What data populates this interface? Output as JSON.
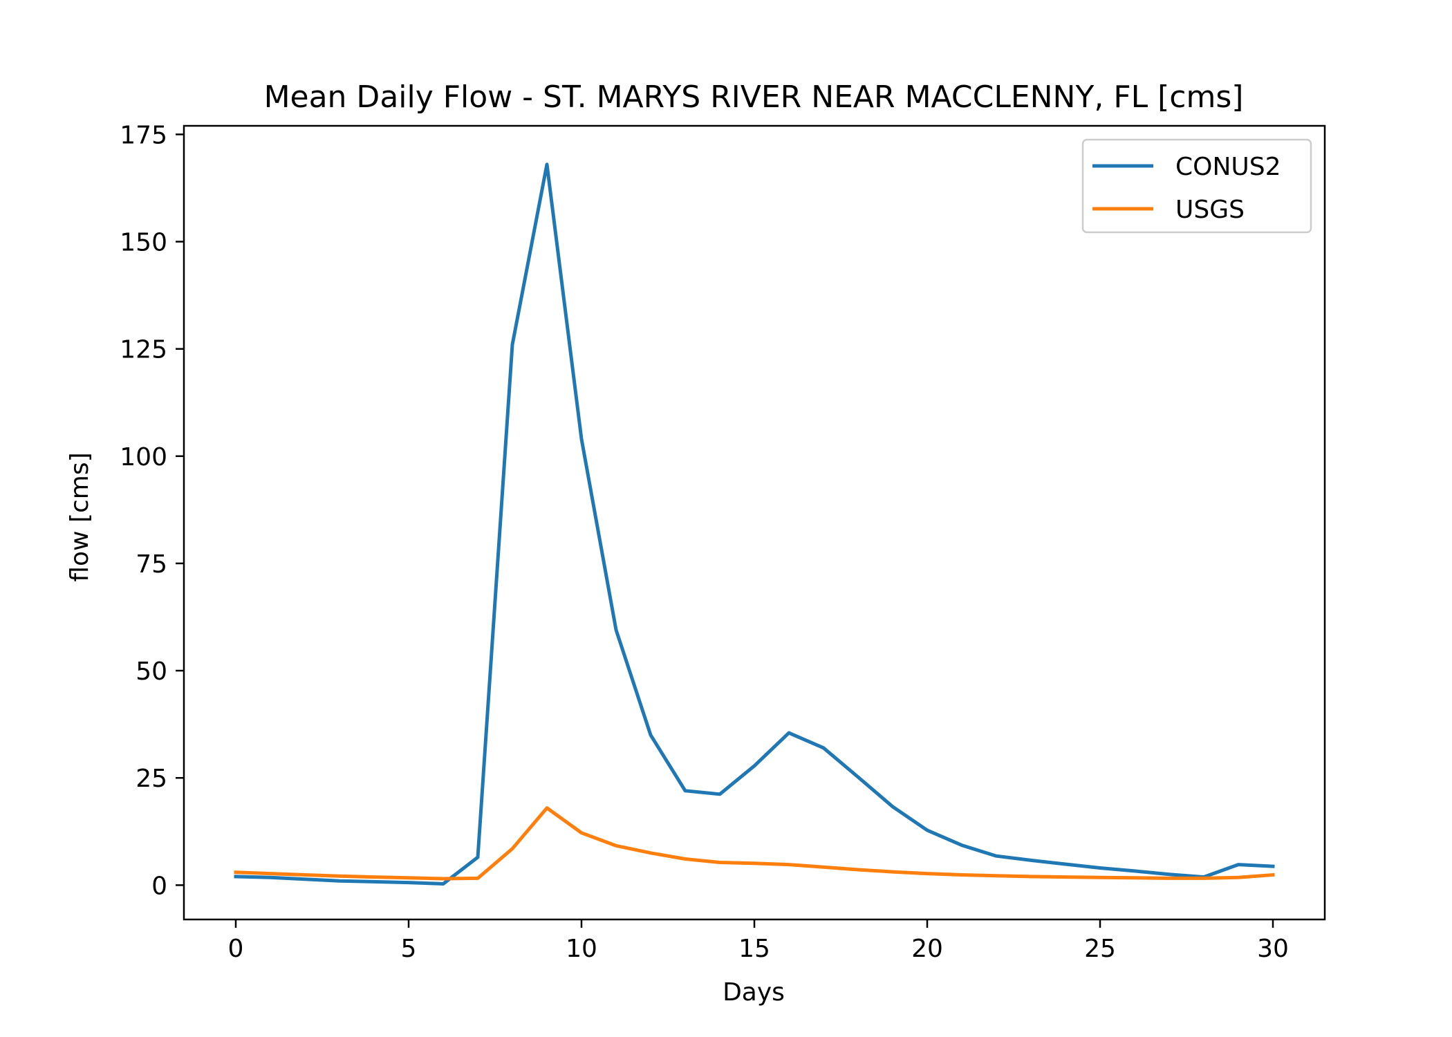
{
  "chart_data": {
    "type": "line",
    "title": "Mean Daily Flow - ST. MARYS RIVER NEAR MACCLENNY, FL [cms]",
    "xlabel": "Days",
    "ylabel": "flow [cms]",
    "xlim": [
      -1.5,
      31.5
    ],
    "ylim": [
      -8,
      177
    ],
    "xticks": [
      0,
      5,
      10,
      15,
      20,
      25,
      30
    ],
    "yticks": [
      0,
      25,
      50,
      75,
      100,
      125,
      150,
      175
    ],
    "grid": false,
    "legend_position": "top-right",
    "series": [
      {
        "name": "CONUS2",
        "color": "#1f77b4",
        "x": [
          0,
          1,
          2,
          3,
          4,
          5,
          6,
          7,
          8,
          9,
          10,
          11,
          12,
          13,
          14,
          15,
          16,
          17,
          18,
          19,
          20,
          21,
          22,
          23,
          24,
          25,
          26,
          27,
          28,
          29,
          30
        ],
        "y": [
          2.0,
          1.8,
          1.4,
          1.0,
          0.8,
          0.6,
          0.3,
          6.5,
          126,
          168,
          104,
          59.5,
          35,
          22,
          21.2,
          27.8,
          35.5,
          32,
          25.2,
          18.3,
          12.8,
          9.3,
          6.8,
          5.8,
          4.9,
          4.0,
          3.3,
          2.5,
          1.9,
          4.8,
          4.4
        ]
      },
      {
        "name": "USGS",
        "color": "#ff7f0e",
        "x": [
          0,
          1,
          2,
          3,
          4,
          5,
          6,
          7,
          8,
          9,
          10,
          11,
          12,
          13,
          14,
          15,
          16,
          17,
          18,
          19,
          20,
          21,
          22,
          23,
          24,
          25,
          26,
          27,
          28,
          29,
          30
        ],
        "y": [
          3.0,
          2.7,
          2.4,
          2.1,
          1.9,
          1.7,
          1.5,
          1.6,
          8.5,
          18.0,
          12.2,
          9.2,
          7.5,
          6.1,
          5.3,
          5.1,
          4.8,
          4.2,
          3.6,
          3.1,
          2.7,
          2.4,
          2.2,
          2.0,
          1.9,
          1.8,
          1.7,
          1.6,
          1.6,
          1.8,
          2.4
        ]
      }
    ]
  }
}
